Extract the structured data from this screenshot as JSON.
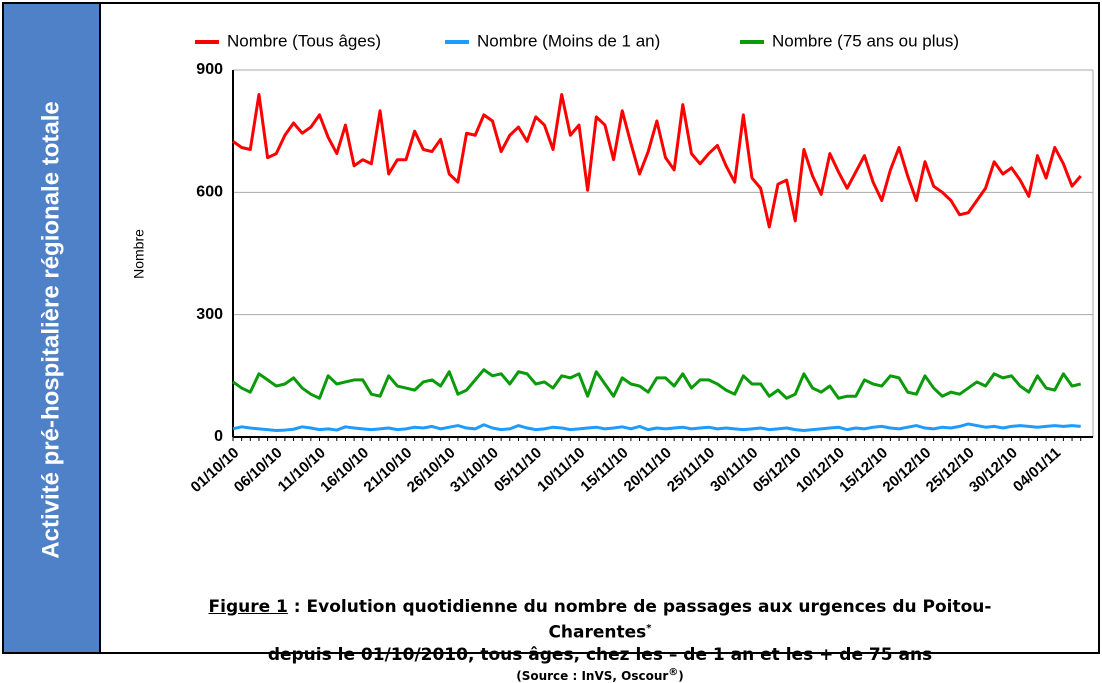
{
  "sidebar": "Activité pré-hospitalière régionale totale",
  "caption": {
    "label": "Figure 1",
    "text": " : Evolution quotidienne du nombre de passages aux urgences du Poitou-Charentes",
    "mark": "*",
    "line2": "depuis le 01/10/2010, tous âges, chez les – de 1 an et les  + de 75 ans",
    "source": "(Source : InVS, Oscour",
    "source_mark": "®",
    "source_end": ")"
  },
  "chart_data": {
    "type": "line",
    "ylabel": "Nombre",
    "categories": [
      "01/10/10",
      null,
      null,
      null,
      null,
      "06/10/10",
      null,
      null,
      null,
      null,
      "11/10/10",
      null,
      null,
      null,
      null,
      "16/10/10",
      null,
      null,
      null,
      null,
      "21/10/10",
      null,
      null,
      null,
      null,
      "26/10/10",
      null,
      null,
      null,
      null,
      "31/10/10",
      null,
      null,
      null,
      null,
      "05/11/10",
      null,
      null,
      null,
      null,
      "10/11/10",
      null,
      null,
      null,
      null,
      "15/11/10",
      null,
      null,
      null,
      null,
      "20/11/10",
      null,
      null,
      null,
      null,
      "25/11/10",
      null,
      null,
      null,
      null,
      "30/11/10",
      null,
      null,
      null,
      null,
      "05/12/10",
      null,
      null,
      null,
      null,
      "10/12/10",
      null,
      null,
      null,
      null,
      "15/12/10",
      null,
      null,
      null,
      null,
      "20/12/10",
      null,
      null,
      null,
      null,
      "25/12/10",
      null,
      null,
      null,
      null,
      "30/12/10",
      null,
      null,
      null,
      null,
      "04/01/11",
      null,
      null,
      null
    ],
    "series": [
      {
        "name": "Nombre (Tous âges)",
        "color": "#ff0000",
        "values": [
          725,
          710,
          705,
          840,
          685,
          695,
          740,
          770,
          745,
          760,
          790,
          735,
          695,
          765,
          665,
          680,
          670,
          800,
          645,
          680,
          680,
          750,
          705,
          700,
          730,
          645,
          625,
          745,
          740,
          790,
          775,
          700,
          740,
          760,
          725,
          785,
          765,
          705,
          840,
          740,
          765,
          605,
          785,
          765,
          680,
          800,
          720,
          645,
          700,
          775,
          685,
          655,
          815,
          695,
          670,
          695,
          715,
          665,
          625,
          790,
          635,
          610,
          515,
          620,
          630,
          530,
          705,
          640,
          595,
          695,
          650,
          610,
          650,
          690,
          625,
          580,
          655,
          710,
          640,
          580,
          675,
          615,
          600,
          580,
          545,
          550,
          580,
          610,
          675,
          645,
          660,
          630,
          590,
          690,
          635,
          710,
          670,
          615,
          640
        ]
      },
      {
        "name": "Nombre (Moins de 1 an)",
        "color": "#1e9bff",
        "values": [
          20,
          25,
          22,
          20,
          18,
          16,
          17,
          19,
          25,
          22,
          18,
          20,
          17,
          25,
          22,
          20,
          18,
          20,
          22,
          18,
          20,
          24,
          22,
          26,
          20,
          24,
          28,
          22,
          20,
          30,
          22,
          18,
          20,
          28,
          22,
          18,
          20,
          24,
          22,
          18,
          20,
          22,
          24,
          20,
          22,
          25,
          20,
          26,
          18,
          22,
          20,
          22,
          24,
          20,
          22,
          24,
          20,
          22,
          20,
          18,
          20,
          22,
          18,
          20,
          22,
          18,
          16,
          18,
          20,
          22,
          24,
          18,
          22,
          20,
          24,
          26,
          22,
          20,
          24,
          28,
          22,
          20,
          24,
          22,
          26,
          32,
          28,
          24,
          26,
          22,
          26,
          28,
          26,
          24,
          26,
          28,
          26,
          28,
          26
        ]
      },
      {
        "name": "Nombre (75 ans ou plus)",
        "color": "#0a9a0a",
        "values": [
          135,
          120,
          110,
          155,
          140,
          125,
          130,
          145,
          120,
          105,
          95,
          150,
          130,
          135,
          140,
          140,
          105,
          100,
          150,
          125,
          120,
          115,
          135,
          140,
          125,
          160,
          105,
          115,
          140,
          165,
          150,
          155,
          130,
          160,
          155,
          130,
          135,
          120,
          150,
          145,
          155,
          100,
          160,
          130,
          100,
          145,
          130,
          125,
          110,
          145,
          145,
          125,
          155,
          120,
          140,
          140,
          130,
          115,
          105,
          150,
          130,
          130,
          100,
          115,
          95,
          105,
          155,
          120,
          110,
          125,
          95,
          100,
          100,
          140,
          130,
          125,
          150,
          145,
          110,
          105,
          150,
          120,
          100,
          110,
          105,
          120,
          135,
          125,
          155,
          145,
          150,
          125,
          110,
          150,
          120,
          115,
          155,
          125,
          130
        ]
      }
    ],
    "ylim": [
      0,
      900
    ],
    "yticks": [
      0,
      300,
      600,
      900
    ],
    "grid": true
  }
}
